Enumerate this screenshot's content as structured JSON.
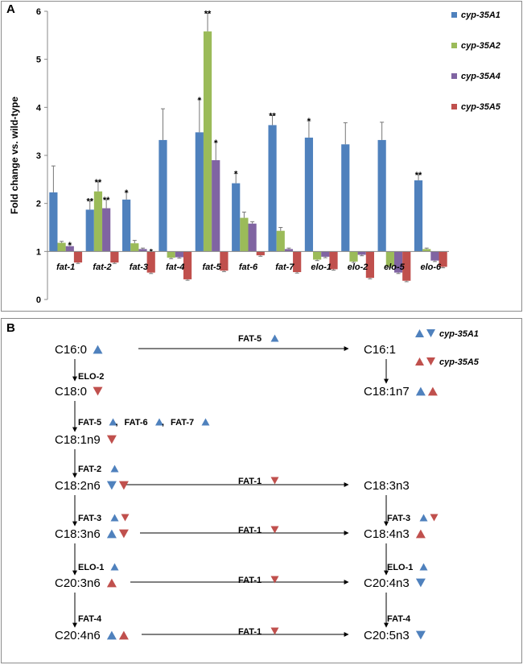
{
  "panel_a": {
    "label": "A"
  },
  "panel_b": {
    "label": "B"
  },
  "chart_data": {
    "type": "bar",
    "title": "",
    "xlabel": "",
    "ylabel": "Fold change vs. wild-type",
    "ylim": [
      0,
      6
    ],
    "yticks": [
      "0",
      "1",
      "2",
      "3",
      "4",
      "5",
      "6"
    ],
    "baseline": 1,
    "legend_position": "right",
    "categories": [
      "fat-1",
      "fat-2",
      "fat-3",
      "fat-4",
      "fat-5",
      "fat-6",
      "fat-7",
      "elo-1",
      "elo-2",
      "elo-5",
      "elo-6"
    ],
    "series": [
      {
        "name": "cyp-35A1",
        "color": "#4f81bd",
        "values": [
          2.23,
          1.87,
          2.08,
          3.32,
          3.48,
          2.42,
          3.63,
          3.37,
          3.23,
          3.32,
          2.48
        ],
        "errors": [
          0.55,
          0.18,
          0.15,
          0.65,
          0.68,
          0.2,
          0.2,
          0.35,
          0.45,
          0.37,
          0.12
        ],
        "sig": [
          "",
          "**",
          "*",
          "",
          "*",
          "*",
          "**",
          "*",
          "",
          "",
          "**"
        ]
      },
      {
        "name": "cyp-35A2",
        "color": "#9bbb59",
        "values": [
          1.18,
          2.25,
          1.17,
          0.87,
          5.58,
          1.7,
          1.43,
          0.83,
          0.79,
          0.69,
          1.05
        ],
        "errors": [
          0.03,
          0.2,
          0.06,
          0.02,
          0.38,
          0.12,
          0.07,
          0.02,
          0.02,
          0.02,
          0.02
        ],
        "sig": [
          "",
          "**",
          "",
          "",
          "**",
          "",
          "",
          "",
          "",
          "",
          ""
        ]
      },
      {
        "name": "cyp-35A4",
        "color": "#8064a2",
        "values": [
          1.11,
          1.9,
          1.05,
          0.88,
          2.9,
          1.58,
          1.05,
          0.89,
          0.93,
          0.56,
          0.81
        ],
        "errors": [
          0.03,
          0.18,
          0.02,
          0.02,
          0.37,
          0.04,
          0.02,
          0.02,
          0.02,
          0.02,
          0.02
        ],
        "sig": [
          "*",
          "**",
          "",
          "",
          "*",
          "",
          "",
          "",
          "",
          "",
          ""
        ]
      },
      {
        "name": "cyp-35A5",
        "color": "#c0504d",
        "values": [
          0.77,
          0.77,
          0.56,
          0.42,
          0.6,
          0.92,
          0.57,
          0.63,
          0.45,
          0.39,
          0.68
        ],
        "errors": [
          0.02,
          0.02,
          0.02,
          0.02,
          0.02,
          0.02,
          0.02,
          0.02,
          0.02,
          0.02,
          0.02
        ],
        "sig": [
          "",
          "",
          "*",
          "",
          "",
          "",
          "",
          "",
          "",
          "",
          ""
        ]
      }
    ]
  },
  "pathway": {
    "legend": [
      {
        "gene": "cyp-35A5",
        "arrows": [
          "up-red",
          "down-red"
        ]
      },
      {
        "gene": "cyp-35A1",
        "arrows": [
          "up-blue",
          "down-blue"
        ]
      }
    ],
    "metabolites": [
      {
        "label": "C16:0",
        "arrows": [
          "up-blue"
        ]
      },
      {
        "label": "C18:0",
        "arrows": [
          "down-red"
        ]
      },
      {
        "label": "C18:1n9",
        "arrows": [
          "down-red"
        ]
      },
      {
        "label": "C18:2n6",
        "arrows": [
          "down-blue",
          "down-red"
        ]
      },
      {
        "label": "C18:3n6",
        "arrows": [
          "up-blue",
          "down-red"
        ]
      },
      {
        "label": "C20:3n6",
        "arrows": [
          "up-red"
        ]
      },
      {
        "label": "C20:4n6",
        "arrows": [
          "up-blue",
          "up-red"
        ]
      },
      {
        "label": "C16:1",
        "arrows": []
      },
      {
        "label": "C18:1n7",
        "arrows": [
          "up-blue",
          "up-red"
        ]
      },
      {
        "label": "C18:3n3",
        "arrows": []
      },
      {
        "label": "C18:4n3",
        "arrows": [
          "up-red"
        ]
      },
      {
        "label": "C20:4n3",
        "arrows": [
          "down-blue"
        ]
      },
      {
        "label": "C20:5n3",
        "arrows": [
          "down-blue"
        ]
      }
    ],
    "enzymes": [
      {
        "label": "FAT-5",
        "arrows": [
          "up-blue"
        ]
      },
      {
        "label": "ELO-2",
        "arrows": []
      },
      {
        "label": "FAT-5 , FAT-6 , FAT-7",
        "arrows": [
          "up-blue",
          "up-blue",
          "up-blue"
        ]
      },
      {
        "label": "FAT-2",
        "arrows": [
          "up-blue"
        ]
      },
      {
        "label": "FAT-1",
        "arrows": [
          "down-red"
        ]
      },
      {
        "label": "FAT-3",
        "arrows": [
          "up-blue",
          "down-red"
        ]
      },
      {
        "label": "FAT-1",
        "arrows": [
          "down-red"
        ]
      },
      {
        "label": "FAT-3",
        "arrows": [
          "up-blue",
          "down-red"
        ]
      },
      {
        "label": "ELO-1",
        "arrows": [
          "up-blue"
        ]
      },
      {
        "label": "FAT-1",
        "arrows": [
          "down-red"
        ]
      },
      {
        "label": "ELO-1",
        "arrows": [
          "up-blue"
        ]
      },
      {
        "label": "FAT-4",
        "arrows": []
      },
      {
        "label": "FAT-1",
        "arrows": [
          "down-red"
        ]
      },
      {
        "label": "FAT-4",
        "arrows": []
      }
    ],
    "colors": {
      "blue": "#4f81bd",
      "red": "#c0504d"
    }
  }
}
